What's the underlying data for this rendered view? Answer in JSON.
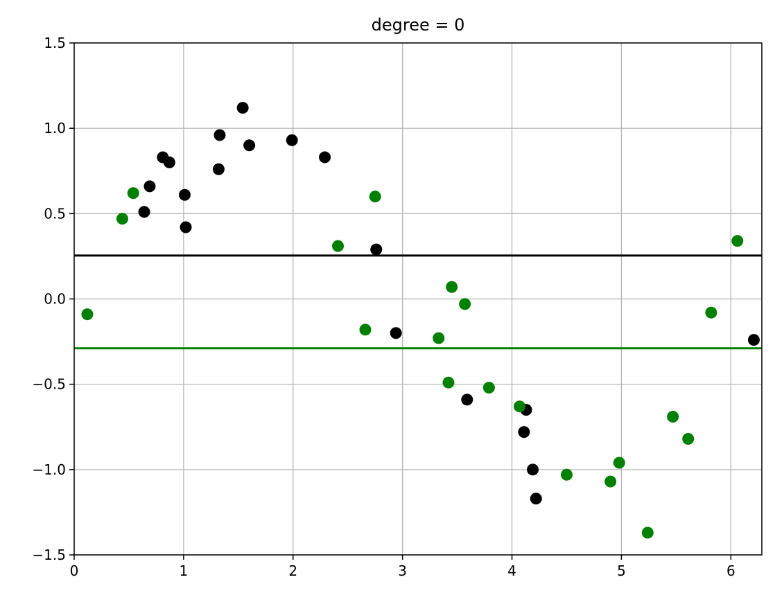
{
  "chart_data": {
    "type": "scatter",
    "title": "degree = 0",
    "xlabel": "",
    "ylabel": "",
    "xlim": [
      0,
      6.283
    ],
    "ylim": [
      -1.5,
      1.5
    ],
    "grid": true,
    "legend": "none",
    "x_ticks": [
      0,
      1,
      2,
      3,
      4,
      5,
      6
    ],
    "x_tick_labels": [
      "0",
      "1",
      "2",
      "3",
      "4",
      "5",
      "6"
    ],
    "y_ticks": [
      -1.5,
      -1.0,
      -0.5,
      0.0,
      0.5,
      1.0,
      1.5
    ],
    "y_tick_labels": [
      "−1.5",
      "−1.0",
      "−0.5",
      "0.0",
      "0.5",
      "1.0",
      "1.5"
    ],
    "series": [
      {
        "color": "#000000",
        "marker": "circle",
        "points": [
          [
            0.64,
            0.51
          ],
          [
            0.69,
            0.66
          ],
          [
            0.81,
            0.83
          ],
          [
            0.87,
            0.8
          ],
          [
            1.01,
            0.61
          ],
          [
            1.02,
            0.42
          ],
          [
            1.32,
            0.76
          ],
          [
            1.33,
            0.96
          ],
          [
            1.54,
            1.12
          ],
          [
            1.6,
            0.9
          ],
          [
            1.99,
            0.93
          ],
          [
            2.29,
            0.83
          ],
          [
            2.76,
            0.29
          ],
          [
            2.94,
            -0.2
          ],
          [
            3.59,
            -0.59
          ],
          [
            4.11,
            -0.78
          ],
          [
            4.13,
            -0.65
          ],
          [
            4.19,
            -1.0
          ],
          [
            4.22,
            -1.17
          ],
          [
            6.21,
            -0.24
          ]
        ]
      },
      {
        "color": "#008000",
        "marker": "circle",
        "points": [
          [
            0.12,
            -0.09
          ],
          [
            0.44,
            0.47
          ],
          [
            0.54,
            0.62
          ],
          [
            2.41,
            0.31
          ],
          [
            2.66,
            -0.18
          ],
          [
            2.75,
            0.6
          ],
          [
            3.33,
            -0.23
          ],
          [
            3.42,
            -0.49
          ],
          [
            3.45,
            0.07
          ],
          [
            3.57,
            -0.03
          ],
          [
            3.79,
            -0.52
          ],
          [
            4.07,
            -0.63
          ],
          [
            4.5,
            -1.03
          ],
          [
            4.9,
            -1.07
          ],
          [
            4.98,
            -0.96
          ],
          [
            5.24,
            -1.37
          ],
          [
            5.47,
            -0.69
          ],
          [
            5.61,
            -0.82
          ],
          [
            5.82,
            -0.08
          ],
          [
            6.06,
            0.34
          ]
        ]
      }
    ],
    "hlines": [
      {
        "color": "#000000",
        "y": 0.254
      },
      {
        "color": "#008000",
        "y": -0.289
      }
    ]
  }
}
